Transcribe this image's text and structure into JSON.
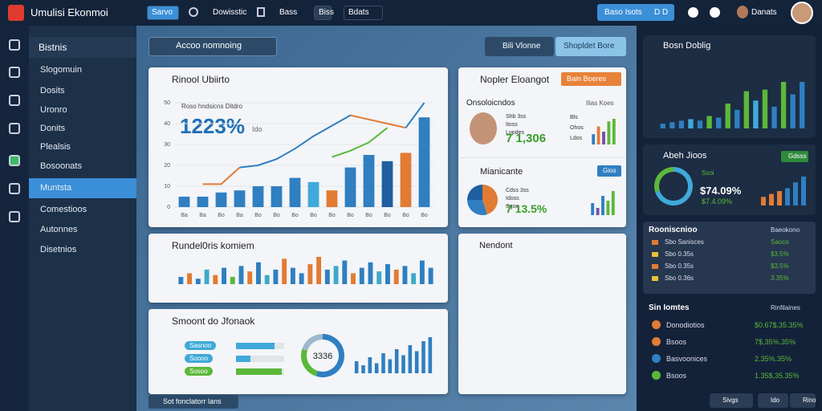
{
  "topbar": {
    "app_title": "Umulisi Ekonmoi",
    "nav": [
      "Sarvo",
      "Dowisstic",
      "Bass",
      "Biss",
      "Bdats"
    ],
    "action": "Baso Isots",
    "action_badge": "D D",
    "user": "Danats"
  },
  "sidebar": {
    "heading": "Bistnis",
    "items": [
      "Slogomuin",
      "Dosits",
      "Uronro",
      "Donits",
      "Plealsis",
      "Bosoonats",
      "Muntsta",
      "Comestioos",
      "Autonnes",
      "Disetnios"
    ]
  },
  "toolbar": {
    "search": "Accoo nomnoing",
    "filter": "Bili Vlonne",
    "button": "Shopldet Bore"
  },
  "overview": {
    "title": "Rinool Ubiirto",
    "subtitle": "Roso hndsicns Ditdro",
    "headline": "1223%",
    "headline_note": "Ido",
    "chart": {
      "type": "bar",
      "categories": [
        "Ba",
        "Ba",
        "Bo",
        "Ba",
        "Bo",
        "Bo",
        "Bo",
        "Bo",
        "Bo",
        "Bo",
        "Bo",
        "Bo",
        "Bo",
        "Bo"
      ],
      "values": [
        5,
        5,
        7,
        8,
        10,
        10,
        14,
        12,
        8,
        19,
        25,
        22,
        26,
        43
      ],
      "colors": [
        "#2f7fc1",
        "#2f7fc1",
        "#2f7fc1",
        "#2f7fc1",
        "#2f7fc1",
        "#2f7fc1",
        "#2f7fc1",
        "#3fa9d9",
        "#e27b33",
        "#2f7fc1",
        "#2f7fc1",
        "#1f5f9f",
        "#e27b33",
        "#2f7fc1"
      ],
      "lines": [
        {
          "color": "#e27b33",
          "values": [
            null,
            11,
            11,
            19,
            null,
            null,
            null,
            null,
            null,
            44,
            42,
            40,
            38,
            null
          ]
        },
        {
          "color": "#2f7fc1",
          "values": [
            null,
            null,
            null,
            19,
            20,
            23,
            28,
            34,
            39,
            44,
            null,
            null,
            38,
            50
          ]
        },
        {
          "color": "#5cb83a",
          "values": [
            null,
            null,
            null,
            null,
            null,
            null,
            null,
            null,
            24,
            27,
            31,
            38,
            null,
            null
          ]
        }
      ],
      "ylim": [
        0,
        55
      ],
      "yticks": [
        0,
        10,
        20,
        30,
        40,
        50
      ]
    }
  },
  "activity": {
    "title": "Rundel0ris komiem",
    "chart": {
      "type": "bar",
      "values": [
        4,
        6,
        3,
        8,
        5,
        9,
        4,
        10,
        7,
        12,
        5,
        8,
        14,
        9,
        6,
        11,
        15,
        8,
        10,
        13,
        6,
        9,
        12,
        7,
        11,
        8,
        10,
        6,
        13,
        9
      ],
      "colors": [
        "#2f7fc1",
        "#e27b33",
        "#2f7fc1",
        "#3fa9c9",
        "#e27b33",
        "#2f7fc1",
        "#5cb83a",
        "#2f7fc1",
        "#e27b33",
        "#2f7fc1",
        "#3fa9c9",
        "#2f7fc1",
        "#e27b33",
        "#2f7fc1",
        "#2f7fc1",
        "#e27b33",
        "#e27b33",
        "#2f7fc1",
        "#3fa9c9",
        "#2f7fc1",
        "#e27b33",
        "#2f7fc1",
        "#2f7fc1",
        "#3fa9c9",
        "#2f7fc1",
        "#e27b33",
        "#2f7fc1",
        "#3fa9c9",
        "#2f7fc1",
        "#2f7fc1"
      ]
    }
  },
  "summary": {
    "title": "Smoont do Jfonaok",
    "progress": [
      {
        "label": "Sasnoo",
        "value": 80,
        "color": "#3fa9d9"
      },
      {
        "label": "Soooo",
        "value": 30,
        "color": "#3fa9d9"
      },
      {
        "label": "Sosoo",
        "value": 95,
        "color": "#5cb83a"
      }
    ],
    "donut": {
      "label": "3336",
      "values": [
        55,
        25,
        20
      ],
      "colors": [
        "#2f7fc1",
        "#5cb83a",
        "#9fb7cc"
      ]
    },
    "bars": {
      "type": "bar",
      "values": [
        6,
        4,
        8,
        5,
        10,
        7,
        12,
        9,
        14,
        11,
        16,
        18
      ],
      "color": "#2f7fc1"
    }
  },
  "profile": {
    "title": "Nopler Eloangot",
    "button": "Bain Boeres",
    "section": "Onsoloicndos",
    "section_note": "Ilias Koes",
    "rows": [
      "Shb 3ss",
      "Itoss",
      "Lopdes"
    ],
    "side_rows": [
      "Bls",
      "Ohos",
      "Ldos"
    ],
    "value": "7 1,306",
    "bars": {
      "type": "bar",
      "values": [
        4,
        7,
        5,
        9,
        10
      ],
      "colors": [
        "#2f7fc1",
        "#e27b33",
        "#7a4fa0",
        "#5cb83a",
        "#5cb83a"
      ]
    },
    "section2": "Mianicante",
    "button2": "Gios",
    "rows2": [
      "Cdss 3ss",
      "Idoss",
      "Sgos"
    ],
    "value2": "7 13.5%",
    "pie": {
      "type": "pie",
      "values": [
        45,
        30,
        25
      ],
      "colors": [
        "#e27b33",
        "#2f7fc1",
        "#1f5f9f"
      ]
    },
    "bars2": {
      "type": "bar",
      "values": [
        5,
        3,
        8,
        6,
        10
      ],
      "colors": [
        "#2f7fc1",
        "#7a4fa0",
        "#2f7fc1",
        "#5cb83a",
        "#5cb83a"
      ]
    }
  },
  "notes": {
    "title": "Nendont"
  },
  "footer_pill": "Sot fonclatorr lans",
  "panel": {
    "trend": {
      "title": "Bosn Doblig",
      "chart": {
        "type": "bar",
        "values": [
          3,
          4,
          5,
          6,
          5,
          8,
          7,
          16,
          12,
          24,
          18,
          25,
          14,
          30,
          22,
          30
        ],
        "colors": [
          "#2f7fc1",
          "#2f7fc1",
          "#2f7fc1",
          "#3fa9d9",
          "#2f7fc1",
          "#5cb83a",
          "#2f7fc1",
          "#5cb83a",
          "#2f7fc1",
          "#5cb83a",
          "#3fa9d9",
          "#5cb83a",
          "#2f7fc1",
          "#5cb83a",
          "#2f7fc1",
          "#2f7fc1"
        ]
      }
    },
    "gauge": {
      "title": "Abeh Jioos",
      "button": "Gdsss",
      "label": "Ssoi",
      "value": "$74.09%",
      "sub": "$7.4.09%",
      "donut": {
        "type": "pie",
        "values": [
          70,
          30
        ],
        "colors": [
          "#3fa9d9",
          "#5cb83a"
        ]
      },
      "bars": {
        "type": "bar",
        "values": [
          3,
          4,
          5,
          6,
          8,
          10
        ],
        "colors": [
          "#e27b33",
          "#e27b33",
          "#e27b33",
          "#2f7fc1",
          "#2f7fc1",
          "#2f7fc1"
        ]
      }
    },
    "list": {
      "title": "Rooniscnioo",
      "note": "Baeokono",
      "rows": [
        {
          "label": "Sbo Sanisces",
          "value": "Saoco"
        },
        {
          "label": "Sbo 0.35s",
          "value": "$3.5%"
        },
        {
          "label": "Sbo 0.35s",
          "value": "$3.5%"
        },
        {
          "label": "Sbo 0.36s",
          "value": "3.35%"
        }
      ]
    },
    "items": {
      "title": "Sin Iomtes",
      "note": "Rinfilaines",
      "rows": [
        {
          "label": "Donodiotios",
          "value": "$0.67$,35.35%",
          "color": "#e27b33"
        },
        {
          "label": "Bsoos",
          "value": "7$,35%.35%",
          "color": "#e27b33"
        },
        {
          "label": "Basvoonices",
          "value": "2.35%.35%",
          "color": "#2f7fc1"
        },
        {
          "label": "Bsoos",
          "value": "1.35$,35.35%",
          "color": "#5cb83a"
        }
      ]
    },
    "buttons": [
      "Sivgs",
      "Ido",
      "Rino"
    ]
  }
}
